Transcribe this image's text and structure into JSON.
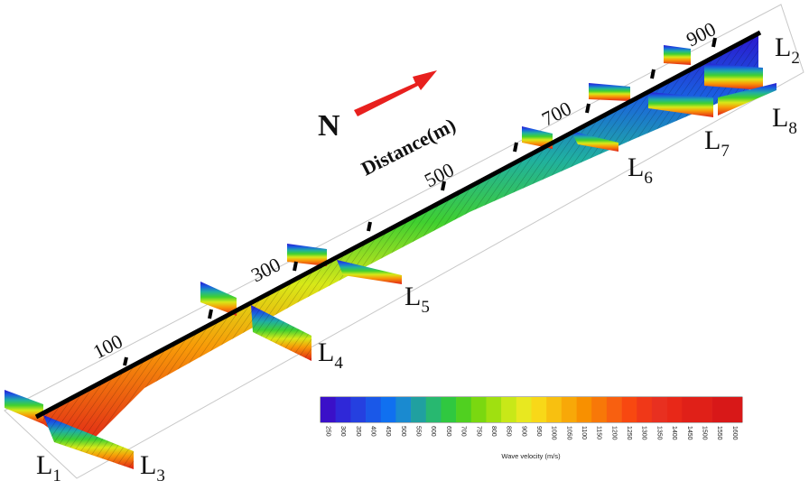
{
  "north": {
    "letter": "N",
    "color": "#e8201e"
  },
  "axis": {
    "title": "Distance(m)",
    "ticks": [
      "100",
      "300",
      "500",
      "700",
      "900"
    ]
  },
  "lines": [
    {
      "main": "L",
      "sub": "1"
    },
    {
      "main": "L",
      "sub": "2"
    },
    {
      "main": "L",
      "sub": "3"
    },
    {
      "main": "L",
      "sub": "4"
    },
    {
      "main": "L",
      "sub": "5"
    },
    {
      "main": "L",
      "sub": "6"
    },
    {
      "main": "L",
      "sub": "7"
    },
    {
      "main": "L",
      "sub": "8"
    }
  ],
  "colorbar": {
    "title": "Wave velocity (m/s)",
    "ticks": [
      "250",
      "300",
      "350",
      "400",
      "450",
      "500",
      "550",
      "600",
      "650",
      "700",
      "750",
      "800",
      "850",
      "900",
      "950",
      "1000",
      "1050",
      "1100",
      "1150",
      "1200",
      "1250",
      "1300",
      "1350",
      "1400",
      "1450",
      "1500",
      "1550",
      "1600"
    ],
    "colors": [
      "#3a10c8",
      "#2f28d8",
      "#2540e0",
      "#1a58e8",
      "#1070f0",
      "#1a8ad0",
      "#20a0a0",
      "#28b870",
      "#30c840",
      "#50d020",
      "#7ad810",
      "#a0e010",
      "#c8e818",
      "#e8e820",
      "#f8d818",
      "#f8c010",
      "#f8a808",
      "#f89000",
      "#f87808",
      "#f86010",
      "#f84810",
      "#f03818",
      "#e83020",
      "#e82818",
      "#e02018",
      "#e02018",
      "#d81818",
      "#d81818"
    ]
  }
}
